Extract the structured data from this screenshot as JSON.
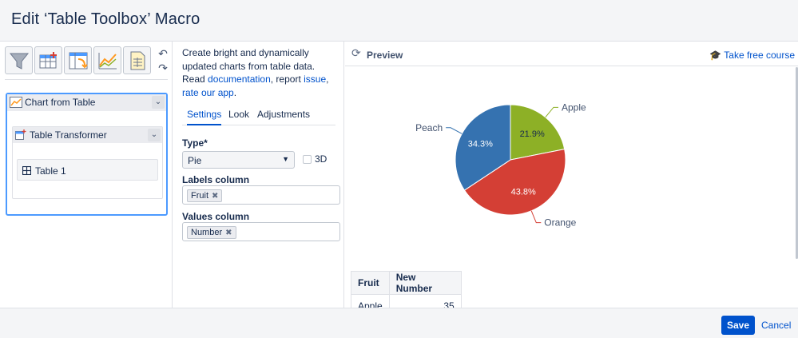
{
  "dialog": {
    "title": "Edit ‘Table Toolbox’ Macro"
  },
  "toolbar": {
    "tools": [
      "filter-funnel-icon",
      "table-add-icon",
      "table-pivot-icon",
      "line-chart-icon",
      "spreadsheet-icon"
    ],
    "undo": "↶",
    "redo": "↷"
  },
  "macro_tree": {
    "chart_from_table": "Chart from Table",
    "table_transformer": "Table Transformer",
    "table_1": "Table 1"
  },
  "description": {
    "line1": "Create bright and dynamically updated charts from table data.",
    "read": "Read ",
    "documentation": "documentation",
    "report": ", report ",
    "issue": "issue",
    "comma": ", ",
    "rate": "rate our app",
    "period": "."
  },
  "tabs": {
    "settings": "Settings",
    "look": "Look",
    "adjustments": "Adjustments"
  },
  "form": {
    "type_label": "Type*",
    "type_value": "Pie",
    "threed_label": "3D",
    "labels_col_label": "Labels column",
    "labels_col_value": "Fruit",
    "values_col_label": "Values column",
    "values_col_value": "Number",
    "remove_glyph": "✖"
  },
  "preview": {
    "title": "Preview",
    "course": "Take free course",
    "refresh": "⟳",
    "cap": "🎓"
  },
  "colors": {
    "apple": "#8db026",
    "orange": "#d43f35",
    "peach": "#3572b0"
  },
  "chart_data": {
    "type": "pie",
    "slices": [
      {
        "label": "Apple",
        "value": 21.9,
        "color": "#8db026",
        "pct_label": "21.9%"
      },
      {
        "label": "Orange",
        "value": 43.8,
        "color": "#d43f35",
        "pct_label": "43.8%"
      },
      {
        "label": "Peach",
        "value": 34.3,
        "color": "#3572b0",
        "pct_label": "34.3%"
      }
    ]
  },
  "result_table": {
    "headers": [
      "Fruit",
      "New Number"
    ],
    "rows": [
      [
        "Apple",
        "35"
      ]
    ]
  },
  "footer": {
    "save": "Save",
    "cancel": "Cancel"
  }
}
